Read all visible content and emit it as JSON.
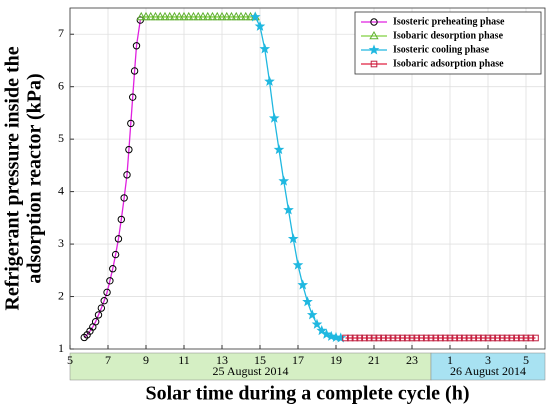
{
  "chart_data": {
    "type": "line",
    "xlabel": "Solar time during a complete cycle (h)",
    "ylabel": [
      "Refrigerant pressure inside the",
      "adsorption reactor (kPa)"
    ],
    "xlim": [
      5,
      30
    ],
    "ylim": [
      1,
      7.5
    ],
    "xticks": [
      5,
      7,
      9,
      11,
      13,
      15,
      17,
      19,
      21,
      23,
      {
        "value": 25,
        "label": "1"
      },
      {
        "value": 27,
        "label": "3"
      },
      {
        "value": 29,
        "label": "5"
      }
    ],
    "yticks": [
      1,
      2,
      3,
      4,
      5,
      6,
      7
    ],
    "grid": true,
    "legend": "upper right",
    "date_bands": [
      {
        "label": "25 August 2014",
        "range": [
          5,
          24
        ],
        "color": "#d5efc4"
      },
      {
        "label": "26 August 2014",
        "range": [
          24,
          30
        ],
        "color": "#a8e2f2"
      }
    ],
    "series": [
      {
        "name": "Isosteric preheating phase",
        "color": "#e020e0",
        "marker": "circle",
        "marker_color": "#000000",
        "x": [
          5.75,
          5.9,
          6.05,
          6.2,
          6.35,
          6.5,
          6.65,
          6.8,
          6.95,
          7.1,
          7.25,
          7.4,
          7.55,
          7.7,
          7.85,
          8.0,
          8.1,
          8.2,
          8.3,
          8.4,
          8.5,
          8.7
        ],
        "values": [
          1.22,
          1.27,
          1.34,
          1.42,
          1.52,
          1.65,
          1.78,
          1.92,
          2.08,
          2.3,
          2.53,
          2.8,
          3.1,
          3.47,
          3.88,
          4.32,
          4.8,
          5.3,
          5.8,
          6.3,
          6.78,
          7.27
        ]
      },
      {
        "name": "Isobaric desorption phase",
        "color": "#80d040",
        "marker": "triangle",
        "marker_color": "#60b030",
        "x": [
          8.75,
          9.0,
          9.25,
          9.5,
          9.75,
          10.0,
          10.25,
          10.5,
          10.75,
          11.0,
          11.25,
          11.5,
          11.75,
          12.0,
          12.25,
          12.5,
          12.75,
          13.0,
          13.25,
          13.5,
          13.75,
          14.0,
          14.25,
          14.5,
          14.75
        ],
        "values": [
          7.33,
          7.33,
          7.33,
          7.33,
          7.33,
          7.33,
          7.33,
          7.33,
          7.33,
          7.33,
          7.33,
          7.33,
          7.33,
          7.33,
          7.33,
          7.33,
          7.33,
          7.33,
          7.33,
          7.33,
          7.33,
          7.33,
          7.33,
          7.33,
          7.33
        ]
      },
      {
        "name": "Isosteric cooling phase",
        "color": "#20b8e0",
        "marker": "star",
        "marker_color": "#20b8e0",
        "x": [
          14.75,
          15.0,
          15.25,
          15.5,
          15.75,
          16.0,
          16.25,
          16.5,
          16.75,
          17.0,
          17.25,
          17.5,
          17.75,
          18.0,
          18.25,
          18.5,
          18.75,
          19.0,
          19.25
        ],
        "values": [
          7.33,
          7.15,
          6.72,
          6.1,
          5.4,
          4.8,
          4.2,
          3.65,
          3.1,
          2.6,
          2.22,
          1.9,
          1.65,
          1.47,
          1.35,
          1.28,
          1.24,
          1.22,
          1.21
        ]
      },
      {
        "name": "Isobaric adsorption phase",
        "color": "#e02040",
        "marker": "square",
        "marker_color": "#c02040",
        "x": [
          19.5,
          19.75,
          20.0,
          20.25,
          20.5,
          20.75,
          21.0,
          21.25,
          21.5,
          21.75,
          22.0,
          22.25,
          22.5,
          22.75,
          23.0,
          23.25,
          23.5,
          23.75,
          24.0,
          24.25,
          24.5,
          24.75,
          25.0,
          25.25,
          25.5,
          25.75,
          26.0,
          26.25,
          26.5,
          26.75,
          27.0,
          27.25,
          27.5,
          27.75,
          28.0,
          28.25,
          28.5,
          28.75,
          29.0,
          29.25,
          29.5
        ],
        "values": [
          1.21,
          1.21,
          1.21,
          1.21,
          1.21,
          1.21,
          1.21,
          1.21,
          1.21,
          1.21,
          1.21,
          1.21,
          1.21,
          1.21,
          1.21,
          1.21,
          1.21,
          1.21,
          1.21,
          1.21,
          1.21,
          1.21,
          1.21,
          1.21,
          1.21,
          1.21,
          1.21,
          1.21,
          1.21,
          1.21,
          1.21,
          1.21,
          1.21,
          1.21,
          1.21,
          1.21,
          1.21,
          1.21,
          1.21,
          1.21,
          1.21
        ]
      }
    ]
  }
}
